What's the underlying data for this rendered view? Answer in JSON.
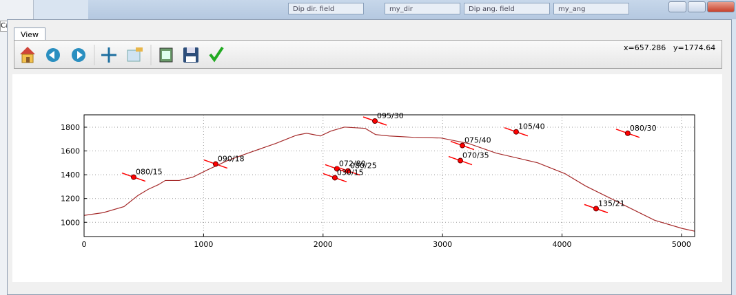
{
  "window": {
    "behind_title": "Ca",
    "field_labels": [
      "Dip dir. field",
      "Dip ang. field"
    ],
    "field_values": [
      "my_dir",
      "my_ang"
    ]
  },
  "tab": "View",
  "toolbar": {
    "coord_x": "x=657.286",
    "coord_y": "y=1774.64"
  },
  "chart_data": {
    "type": "line",
    "x": [
      0,
      161,
      334,
      450,
      536,
      623,
      680,
      796,
      911,
      1026,
      1200,
      1372,
      1603,
      1776,
      1862,
      1978,
      2064,
      2180,
      2353,
      2439,
      2555,
      2757,
      2987,
      3218,
      3449,
      3795,
      4025,
      4198,
      4371,
      4544,
      4775,
      5006,
      5110
    ],
    "values": [
      1058,
      1081,
      1132,
      1225,
      1277,
      1317,
      1352,
      1352,
      1380,
      1438,
      1519,
      1582,
      1663,
      1732,
      1749,
      1726,
      1767,
      1801,
      1790,
      1738,
      1726,
      1715,
      1709,
      1663,
      1582,
      1501,
      1409,
      1305,
      1219,
      1132,
      1017,
      948,
      925
    ],
    "color": "#a52a2a",
    "points": {
      "x": [
        415,
        1101,
        2116,
        2209,
        2099,
        2434,
        3166,
        3149,
        3616,
        4550,
        4285
      ],
      "y": [
        1380,
        1490,
        1450,
        1432,
        1375,
        1852,
        1646,
        1519,
        1761,
        1749,
        1115
      ],
      "labels": [
        "080/15",
        "090/18",
        "072/80",
        "080/25",
        "030/15",
        "095/30",
        "075/40",
        "070/35",
        "105/40",
        "080/30",
        "135/21"
      ],
      "color": "#ff0000"
    },
    "xlim": [
      0,
      5110
    ],
    "ylim": [
      880,
      1904
    ],
    "xticks": [
      0,
      1000,
      2000,
      3000,
      4000,
      5000
    ],
    "yticks": [
      1000,
      1200,
      1400,
      1600,
      1800
    ],
    "grid": true
  }
}
